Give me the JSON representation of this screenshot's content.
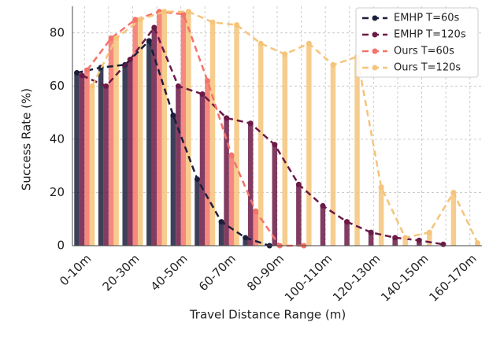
{
  "chart_data": {
    "type": "bar",
    "x_label": "Travel Distance Range (m)",
    "y_label": "Success Rate (%)",
    "categories": [
      "0-10m",
      null,
      "20-30m",
      null,
      "40-50m",
      null,
      "60-70m",
      null,
      "80-90m",
      null,
      "100-110m",
      null,
      "120-130m",
      null,
      "140-150m",
      null,
      "160-170m"
    ],
    "series": [
      {
        "name": "EMHP T=60s",
        "color": "#1b1f3b",
        "values": [
          65,
          67,
          68,
          77,
          49,
          25,
          9,
          3,
          0,
          null,
          null,
          null,
          null,
          null,
          null,
          null,
          null
        ]
      },
      {
        "name": "EMHP T=120s",
        "color": "#6b1a47",
        "values": [
          64,
          60,
          70,
          82,
          60,
          57,
          48,
          46,
          38,
          23,
          15,
          9,
          5,
          3,
          2,
          0.5,
          null
        ]
      },
      {
        "name": "Ours T=60s",
        "color": "#f4736a",
        "values": [
          66,
          78,
          85,
          88,
          87,
          62,
          34,
          13,
          0,
          0,
          null,
          null,
          null,
          null,
          null,
          null,
          null
        ]
      },
      {
        "name": "Ours T=120s",
        "color": "#f5c47a",
        "values": [
          60,
          78,
          85,
          88,
          88,
          84,
          83,
          76,
          72,
          76,
          68,
          71,
          22,
          3,
          5,
          20,
          1
        ]
      }
    ],
    "ylim": [
      0,
      90
    ],
    "yticks": [
      0,
      20,
      40,
      60,
      80
    ],
    "grid": true,
    "legend": "upper right"
  }
}
